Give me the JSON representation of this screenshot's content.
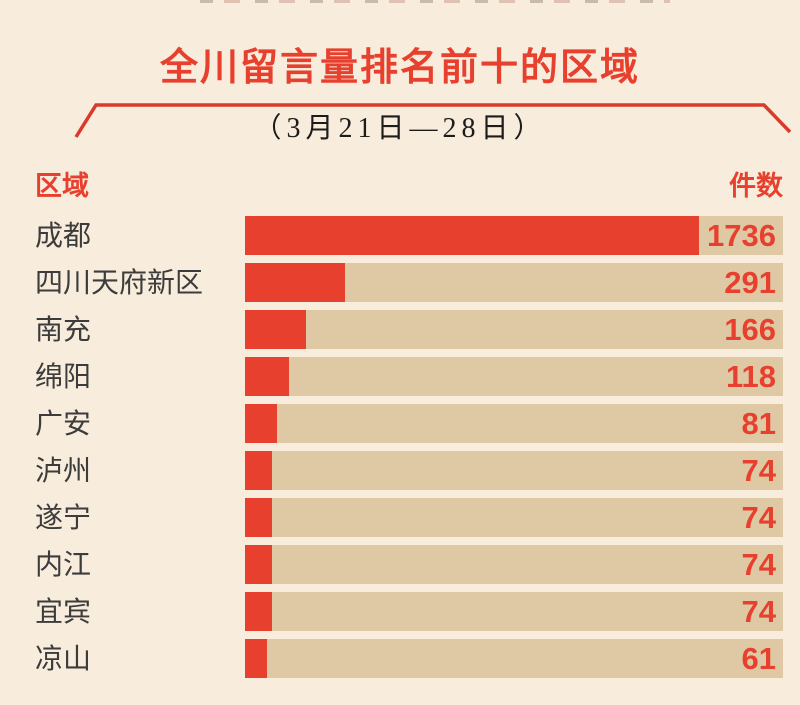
{
  "page": {
    "background_color": "#f8eddc",
    "accent_red": "#e8402e",
    "line_red": "#d93a2b",
    "track_color": "#dfc9a4",
    "label_color": "#3c3c3c"
  },
  "header": {
    "title": "全川留言量排名前十的区域",
    "subtitle": "（3月21日—28日）",
    "left_column_label": "区域",
    "right_column_label": "件数"
  },
  "chart_data": {
    "type": "bar",
    "orientation": "horizontal",
    "title": "全川留言量排名前十的区域",
    "subtitle": "（3月21日—28日）",
    "category_header": "区域",
    "value_header": "件数",
    "categories": [
      "成都",
      "四川天府新区",
      "南充",
      "绵阳",
      "广安",
      "泸州",
      "遂宁",
      "内江",
      "宜宾",
      "凉山"
    ],
    "values": [
      1736,
      291,
      166,
      118,
      81,
      74,
      74,
      74,
      74,
      61
    ],
    "bar_pct": [
      84.4,
      18.6,
      11.3,
      8.2,
      5.9,
      5.0,
      5.0,
      5.0,
      5.0,
      4.1
    ],
    "bar_color": "#e8402e",
    "track_color": "#dfc9a4",
    "value_label_color": "#e8402e",
    "legend": "none",
    "grid": "off",
    "note": "bar lengths as drawn are not strictly proportional; top bar is truncated"
  }
}
